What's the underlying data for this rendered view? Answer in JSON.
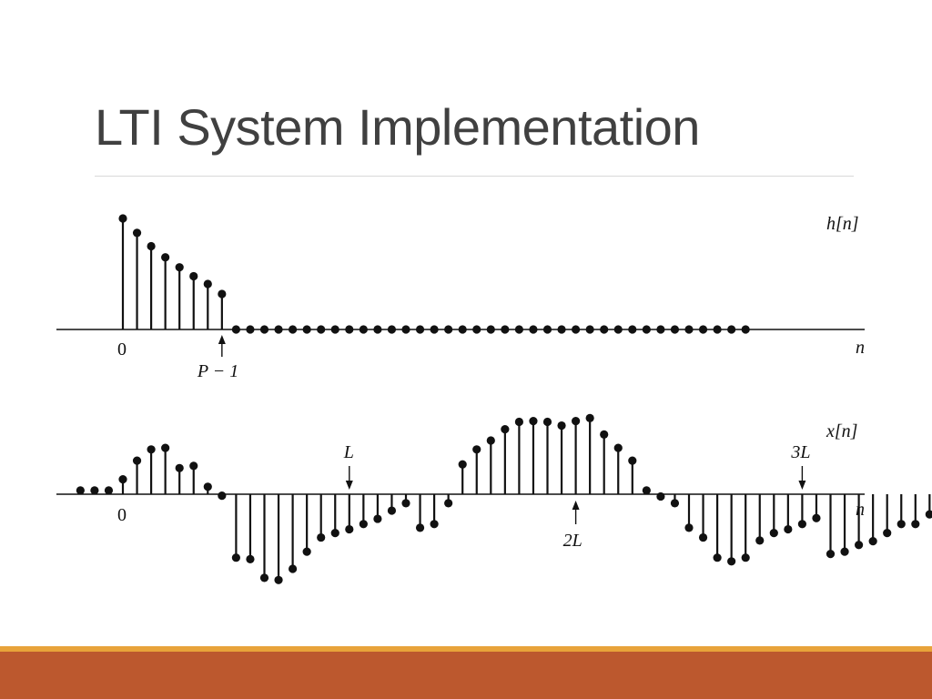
{
  "slide": {
    "title": "LTI System Implementation"
  },
  "colors": {
    "title": "#404040",
    "rule": "#d9d9d9",
    "footer_accent": "#e8a33a",
    "footer_band": "#bc582e",
    "stems": "#111111"
  },
  "chart_data": [
    {
      "type": "stem",
      "name_label": "h[n]",
      "x_label": "n",
      "n_start": -4,
      "n_end": 48,
      "values": [
        0,
        0,
        0,
        0,
        1.0,
        0.87,
        0.75,
        0.65,
        0.56,
        0.48,
        0.41,
        0.32,
        0,
        0,
        0,
        0,
        0,
        0,
        0,
        0,
        0,
        0,
        0,
        0,
        0,
        0,
        0,
        0,
        0,
        0,
        0,
        0,
        0,
        0,
        0,
        0,
        0,
        0,
        0,
        0,
        0,
        0,
        0,
        0,
        0,
        0,
        0,
        0,
        0
      ],
      "dots_start_n": 4,
      "dots_end_n": 52,
      "tick_labels": [
        {
          "n": 0,
          "text": "0"
        }
      ],
      "annotations": [
        {
          "n": 7,
          "text": "P − 1",
          "arrow": "up"
        }
      ]
    },
    {
      "type": "stem",
      "name_label": "x[n]",
      "x_label": "n",
      "n_start": -3,
      "values": [
        0.05,
        0.05,
        0.05,
        0.2,
        0.45,
        0.6,
        0.62,
        0.35,
        0.38,
        0.1,
        -0.02,
        -0.85,
        -0.87,
        -1.12,
        -1.15,
        -1.0,
        -0.77,
        -0.58,
        -0.52,
        -0.47,
        -0.4,
        -0.33,
        -0.22,
        -0.12,
        -0.45,
        -0.4,
        -0.12,
        0.4,
        0.6,
        0.72,
        0.87,
        0.97,
        0.98,
        0.97,
        0.92,
        0.98,
        1.02,
        0.8,
        0.62,
        0.45,
        0.05,
        -0.03,
        -0.12,
        -0.45,
        -0.58,
        -0.85,
        -0.9,
        -0.85,
        -0.62,
        -0.52,
        -0.47,
        -0.4,
        -0.32,
        -0.8,
        -0.77,
        -0.68,
        -0.63,
        -0.52,
        -0.4,
        -0.4,
        -0.27
      ],
      "tick_labels": [
        {
          "n": 0,
          "text": "0"
        }
      ],
      "annotations": [
        {
          "n": 16,
          "text": "L",
          "arrow": "down"
        },
        {
          "n": 32,
          "text": "2L",
          "arrow": "up"
        },
        {
          "n": 48,
          "text": "3L",
          "arrow": "down"
        }
      ]
    }
  ]
}
